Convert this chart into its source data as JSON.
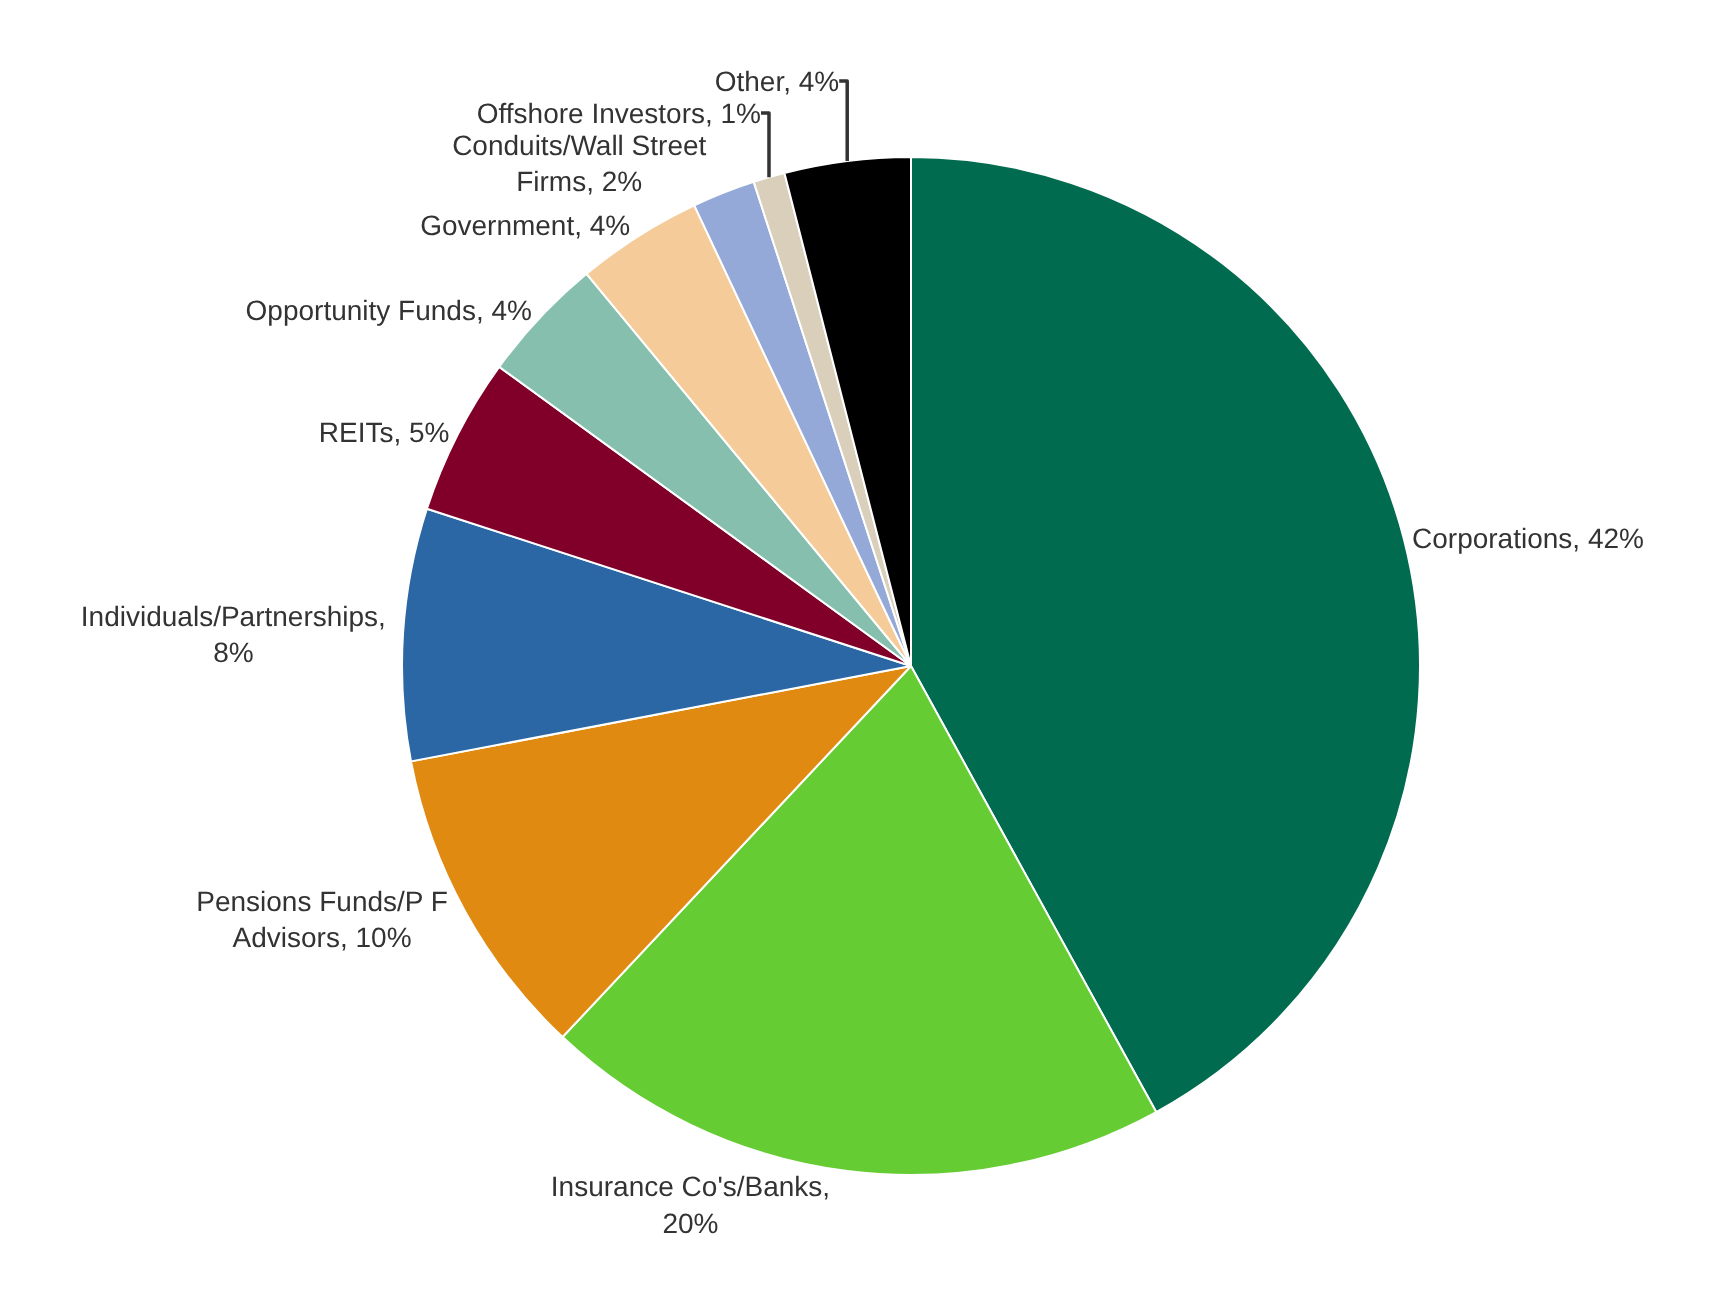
{
  "chart_data": {
    "type": "pie",
    "categories": [
      "Corporations, 42%",
      "Insurance Co's/Banks,\n20%",
      "Pensions Funds/P F\nAdvisors, 10%",
      "Individuals/Partnerships,\n8%",
      "REITs, 5%",
      "Opportunity Funds, 4%",
      "Government, 4%",
      "Conduits/Wall Street\nFirms, 2%",
      "Offshore Investors, 1%",
      "Other, 4%"
    ],
    "values": [
      42,
      20,
      10,
      8,
      5,
      4,
      4,
      2,
      1,
      4
    ],
    "colors": [
      "#006b4f",
      "#66cc33",
      "#e08a12",
      "#2b67a4",
      "#80002a",
      "#86bfae",
      "#f5cc99",
      "#94a9d8",
      "#d9cfbb",
      "#000000"
    ],
    "legend": false
  }
}
